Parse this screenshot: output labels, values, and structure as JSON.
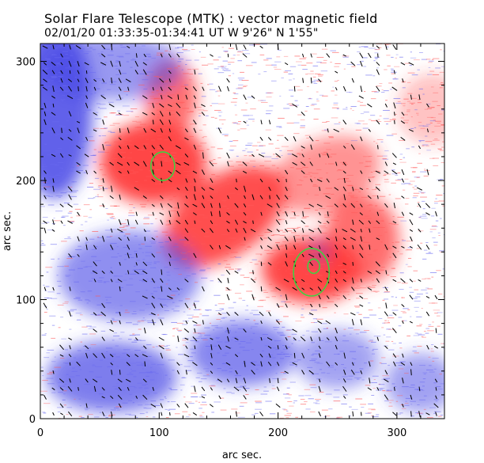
{
  "chart_data": {
    "type": "heatmap",
    "title": "Solar Flare Telescope (MTK) : vector magnetic field",
    "subtitle": "02/01/20   01:33:35-01:34:41 UT     W 9'26\"   N 1'55\"",
    "xlabel": "arc sec.",
    "ylabel": "arc sec.",
    "xlim": [
      0,
      340
    ],
    "ylim": [
      0,
      315
    ],
    "xticks": [
      0,
      100,
      200,
      300
    ],
    "yticks": [
      0,
      100,
      200,
      300
    ],
    "colors": {
      "positive": "#ff3c3c",
      "negative": "#4646e6",
      "contour": "#40d040",
      "vector": "#000000"
    },
    "positive_regions": [
      {
        "cx": 95,
        "cy": 215,
        "rx": 45,
        "ry": 35,
        "strength": 0.95
      },
      {
        "cx": 110,
        "cy": 270,
        "rx": 22,
        "ry": 32,
        "strength": 0.75
      },
      {
        "cx": 155,
        "cy": 170,
        "rx": 58,
        "ry": 34,
        "rot": -35,
        "strength": 0.9
      },
      {
        "cx": 228,
        "cy": 125,
        "rx": 42,
        "ry": 28,
        "strength": 0.95
      },
      {
        "cx": 270,
        "cy": 150,
        "rx": 32,
        "ry": 38,
        "strength": 0.75
      },
      {
        "cx": 240,
        "cy": 205,
        "rx": 48,
        "ry": 30,
        "rot": -20,
        "strength": 0.55
      },
      {
        "cx": 330,
        "cy": 260,
        "rx": 30,
        "ry": 30,
        "strength": 0.3
      }
    ],
    "negative_regions": [
      {
        "cx": 12,
        "cy": 260,
        "rx": 32,
        "ry": 75,
        "strength": 0.85
      },
      {
        "cx": 60,
        "cy": 295,
        "rx": 60,
        "ry": 28,
        "strength": 0.55
      },
      {
        "cx": 75,
        "cy": 120,
        "rx": 60,
        "ry": 38,
        "strength": 0.6
      },
      {
        "cx": 60,
        "cy": 35,
        "rx": 55,
        "ry": 30,
        "strength": 0.7
      },
      {
        "cx": 170,
        "cy": 55,
        "rx": 45,
        "ry": 28,
        "strength": 0.65
      },
      {
        "cx": 250,
        "cy": 50,
        "rx": 35,
        "ry": 25,
        "strength": 0.5
      },
      {
        "cx": 320,
        "cy": 30,
        "rx": 30,
        "ry": 25,
        "strength": 0.5
      },
      {
        "cx": 235,
        "cy": 140,
        "rx": 8,
        "ry": 8,
        "strength": 0.5
      }
    ],
    "contours": [
      {
        "cx": 103,
        "cy": 212,
        "rx": 10,
        "ry": 12
      },
      {
        "cx": 228,
        "cy": 123,
        "rx": 15,
        "ry": 20
      },
      {
        "cx": 230,
        "cy": 128,
        "rx": 5,
        "ry": 6
      }
    ]
  }
}
